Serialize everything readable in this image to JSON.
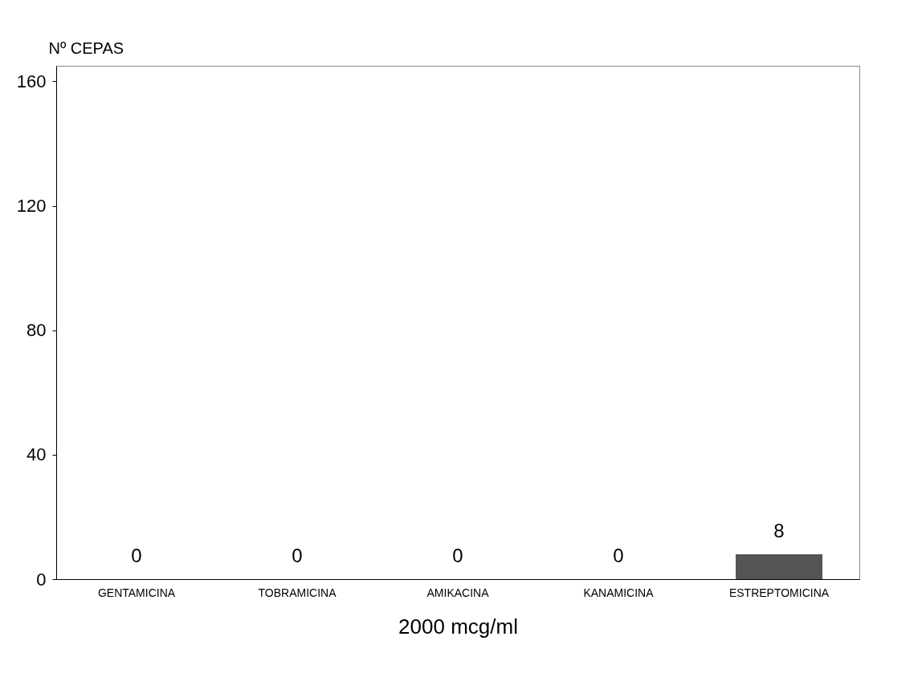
{
  "chart_data": {
    "type": "bar",
    "categories": [
      "GENTAMICINA",
      "TOBRAMICINA",
      "AMIKACINA",
      "KANAMICINA",
      "ESTREPTOMICINA"
    ],
    "values": [
      0,
      0,
      0,
      0,
      8
    ],
    "color": "#555555",
    "ylabel": "Nº CEPAS",
    "xlabel": "2000 mcg/ml",
    "ylim": [
      0,
      165
    ],
    "yticks": [
      0,
      40,
      80,
      120,
      160
    ],
    "data_labels": true,
    "grid": false
  }
}
